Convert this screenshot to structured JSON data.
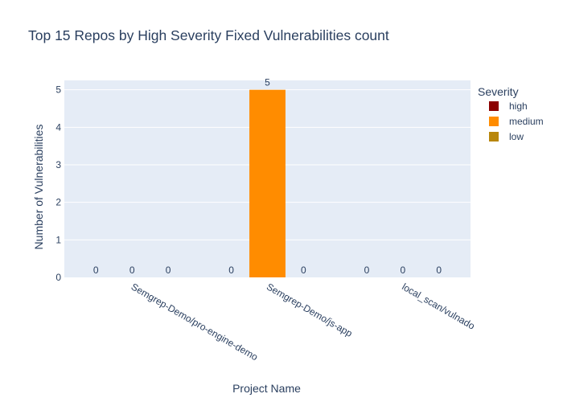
{
  "chart_data": {
    "type": "bar",
    "title": "Top 15 Repos by High Severity Fixed Vulnerabilities count",
    "xlabel": "Project Name",
    "ylabel": "Number of Vulnerabilities",
    "categories": [
      "Semgrep-Demo/pro-engine-demo",
      "Semgrep-Demo/js-app",
      "local_scan/vulnado"
    ],
    "series": [
      {
        "name": "high",
        "color": "#8b0000",
        "values": [
          0,
          0,
          0
        ]
      },
      {
        "name": "medium",
        "color": "#ff8c00",
        "values": [
          0,
          5,
          0
        ]
      },
      {
        "name": "low",
        "color": "#b8860b",
        "values": [
          0,
          0,
          0
        ]
      }
    ],
    "ylim": [
      0,
      5.25
    ],
    "yticks": [
      0,
      1,
      2,
      3,
      4,
      5
    ],
    "legend": {
      "title": "Severity",
      "placement": "right"
    },
    "grid": true,
    "barmode": "group",
    "plot_bgcolor": "#e5ecf6"
  }
}
